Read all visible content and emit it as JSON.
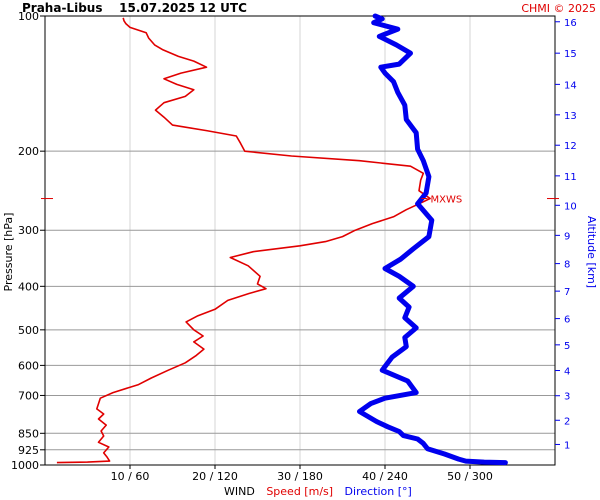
{
  "header": {
    "title": "Praha-Libus    15.07.2025 12 UTC",
    "credit": "CHMI © 2025"
  },
  "colors": {
    "speed": "#e00000",
    "direction": "#0000ee",
    "grid_major": "#999999",
    "grid_minor": "#d6d6d6",
    "text": "#000000"
  },
  "chart_data": {
    "type": "line",
    "title": "Praha-Libus    15.07.2025 12 UTC",
    "x_axis": {
      "label_parts": [
        {
          "text": "WIND",
          "color": "#000000"
        },
        {
          "text": "Speed [m/s]",
          "color": "#e00000"
        },
        {
          "text": "Direction [°]",
          "color": "#0000ee"
        }
      ],
      "speed_range": [
        0,
        60
      ],
      "direction_range": [
        0,
        360
      ],
      "tick_labels": [
        "10 / 60",
        "20 / 120",
        "30 / 180",
        "40 / 240",
        "50 / 300"
      ],
      "tick_speeds": [
        10,
        20,
        30,
        40,
        50
      ]
    },
    "y_axis_left": {
      "label": "Pressure [hPa]",
      "scale": "log",
      "range": [
        1000,
        100
      ],
      "ticks": [
        100,
        200,
        300,
        400,
        500,
        600,
        700,
        850,
        925,
        1000
      ],
      "tick_labels": [
        "100",
        "200",
        "300",
        "400",
        "500",
        "600",
        "700",
        "850",
        "925",
        "1000"
      ]
    },
    "y_axis_right": {
      "label": "Altitude [km]",
      "ticks": [
        1,
        2,
        3,
        4,
        5,
        6,
        7,
        8,
        9,
        10,
        11,
        12,
        13,
        14,
        15,
        16
      ],
      "tick_labels": [
        "1",
        "2",
        "3",
        "4",
        "5",
        "6",
        "7",
        "8",
        "9",
        "10",
        "11",
        "12",
        "13",
        "14",
        "15",
        "16"
      ],
      "tick_pressures": [
        900,
        795,
        701,
        616,
        540,
        472,
        410,
        356,
        308,
        264,
        227,
        194,
        166,
        142,
        121,
        103
      ]
    },
    "annotation": {
      "text": "MXWS",
      "pressure": 255,
      "speed": 45
    },
    "series": [
      {
        "name": "Speed [m/s]",
        "color": "#e00000",
        "points": [
          [
            1.4,
            988
          ],
          [
            5,
            985
          ],
          [
            7.6,
            980
          ],
          [
            7.3,
            960
          ],
          [
            6.9,
            940
          ],
          [
            7.5,
            912
          ],
          [
            6.3,
            890
          ],
          [
            6.9,
            862
          ],
          [
            6.6,
            840
          ],
          [
            7.2,
            815
          ],
          [
            6.3,
            790
          ],
          [
            6.9,
            770
          ],
          [
            6.1,
            750
          ],
          [
            6.5,
            710
          ],
          [
            8,
            690
          ],
          [
            11,
            662
          ],
          [
            12.5,
            640
          ],
          [
            14.5,
            615
          ],
          [
            16.5,
            592
          ],
          [
            17.8,
            570
          ],
          [
            18.7,
            552
          ],
          [
            17.5,
            532
          ],
          [
            18.6,
            516
          ],
          [
            17.5,
            500
          ],
          [
            16.6,
            480
          ],
          [
            18,
            465
          ],
          [
            20,
            450
          ],
          [
            21.5,
            430
          ],
          [
            24,
            415
          ],
          [
            26,
            405
          ],
          [
            25,
            395
          ],
          [
            25.3,
            380
          ],
          [
            23.9,
            360
          ],
          [
            21.8,
            345
          ],
          [
            24.5,
            335
          ],
          [
            30,
            325
          ],
          [
            33,
            318
          ],
          [
            35,
            310
          ],
          [
            36.5,
            300
          ],
          [
            38.5,
            290
          ],
          [
            41,
            280
          ],
          [
            42.5,
            270
          ],
          [
            44,
            262
          ],
          [
            45.3,
            255
          ],
          [
            44,
            245
          ],
          [
            44.2,
            232
          ],
          [
            44.5,
            224
          ],
          [
            43,
            216
          ],
          [
            37,
            210
          ],
          [
            29,
            205
          ],
          [
            23.5,
            200
          ],
          [
            23,
            192
          ],
          [
            22.5,
            185
          ],
          [
            19,
            180
          ],
          [
            15,
            175
          ],
          [
            14,
            168
          ],
          [
            13,
            162
          ],
          [
            14,
            156
          ],
          [
            16.5,
            151
          ],
          [
            17.5,
            146
          ],
          [
            15.5,
            142
          ],
          [
            14,
            138
          ],
          [
            16,
            134
          ],
          [
            19,
            130
          ],
          [
            17.5,
            126
          ],
          [
            15.7,
            123
          ],
          [
            13.9,
            119
          ],
          [
            12.9,
            116
          ],
          [
            12.2,
            112
          ],
          [
            11.9,
            109
          ],
          [
            10,
            106
          ],
          [
            9.5,
            104
          ],
          [
            9.3,
            102.5
          ],
          [
            9.2,
            101
          ]
        ]
      },
      {
        "name": "Direction [°]",
        "color": "#0000ee",
        "points": [
          [
            325,
            988
          ],
          [
            310,
            985
          ],
          [
            297,
            980
          ],
          [
            292,
            970
          ],
          [
            282,
            945
          ],
          [
            270,
            920
          ],
          [
            267,
            895
          ],
          [
            263,
            875
          ],
          [
            253,
            860
          ],
          [
            250,
            842
          ],
          [
            242,
            822
          ],
          [
            234,
            800
          ],
          [
            222,
            760
          ],
          [
            230,
            730
          ],
          [
            240,
            710
          ],
          [
            262,
            690
          ],
          [
            256,
            650
          ],
          [
            238,
            615
          ],
          [
            245,
            575
          ],
          [
            255,
            545
          ],
          [
            254,
            520
          ],
          [
            262,
            495
          ],
          [
            254,
            470
          ],
          [
            257,
            445
          ],
          [
            250,
            425
          ],
          [
            260,
            400
          ],
          [
            250,
            380
          ],
          [
            240,
            365
          ],
          [
            251,
            348
          ],
          [
            260,
            330
          ],
          [
            271,
            310
          ],
          [
            273,
            285
          ],
          [
            263,
            262
          ],
          [
            269,
            248
          ],
          [
            271,
            228
          ],
          [
            267,
            210
          ],
          [
            263,
            198
          ],
          [
            262,
            182
          ],
          [
            255,
            170
          ],
          [
            254,
            158
          ],
          [
            249,
            148
          ],
          [
            246,
            140
          ],
          [
            240,
            134
          ],
          [
            237,
            130
          ],
          [
            250,
            128
          ],
          [
            258,
            121
          ],
          [
            248,
            116
          ],
          [
            236,
            111
          ],
          [
            249,
            107
          ],
          [
            232,
            103.5
          ],
          [
            238,
            101.5
          ],
          [
            233,
            100
          ]
        ]
      }
    ],
    "grid": true
  }
}
